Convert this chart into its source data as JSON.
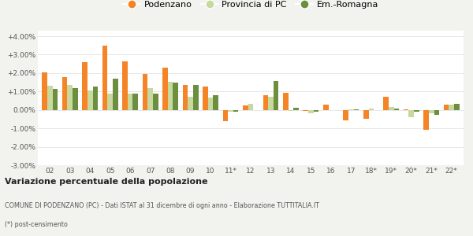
{
  "categories": [
    "02",
    "03",
    "04",
    "05",
    "06",
    "07",
    "08",
    "09",
    "10",
    "11*",
    "12",
    "13",
    "14",
    "15",
    "16",
    "17",
    "18*",
    "19*",
    "20*",
    "21*",
    "22*"
  ],
  "podenzano": [
    2.05,
    1.8,
    2.6,
    3.48,
    2.65,
    1.95,
    2.28,
    1.35,
    1.25,
    -0.6,
    0.25,
    0.82,
    0.92,
    -0.05,
    0.28,
    -0.55,
    -0.48,
    0.7,
    0.02,
    -1.1,
    0.28
  ],
  "provincia_pc": [
    1.3,
    1.35,
    1.05,
    0.88,
    0.88,
    1.18,
    1.52,
    0.72,
    0.68,
    -0.08,
    0.32,
    0.72,
    -0.05,
    -0.18,
    0.0,
    0.05,
    0.08,
    0.15,
    -0.4,
    -0.18,
    0.28
  ],
  "em_romagna": [
    1.15,
    1.2,
    1.25,
    1.7,
    0.88,
    0.88,
    1.48,
    1.35,
    0.82,
    -0.08,
    0.0,
    1.58,
    0.1,
    -0.1,
    0.0,
    0.05,
    0.0,
    0.08,
    -0.1,
    -0.25,
    0.32
  ],
  "color_podenzano": "#f58426",
  "color_provincia": "#c8d9a0",
  "color_emromagna": "#6b8f3e",
  "label_podenzano": "Podenzano",
  "label_provincia": "Provincia di PC",
  "label_emromagna": "Em.-Romagna",
  "title_bold": "Variazione percentuale della popolazione",
  "subtitle": "COMUNE DI PODENZANO (PC) - Dati ISTAT al 31 dicembre di ogni anno - Elaborazione TUTTITALIA.IT",
  "footnote": "(*) post-censimento",
  "ylim_min": -3.0,
  "ylim_max": 4.0,
  "yticks": [
    -3.0,
    -2.0,
    -1.0,
    0.0,
    1.0,
    2.0,
    3.0,
    4.0
  ],
  "ytick_labels": [
    "-3.00%",
    "-2.00%",
    "-1.00%",
    "0.00%",
    "+1.00%",
    "+2.00%",
    "+3.00%",
    "+4.00%"
  ],
  "bg_color": "#f2f2ee",
  "plot_bg": "#ffffff",
  "grid_color": "#dddddd",
  "bar_width": 0.26
}
